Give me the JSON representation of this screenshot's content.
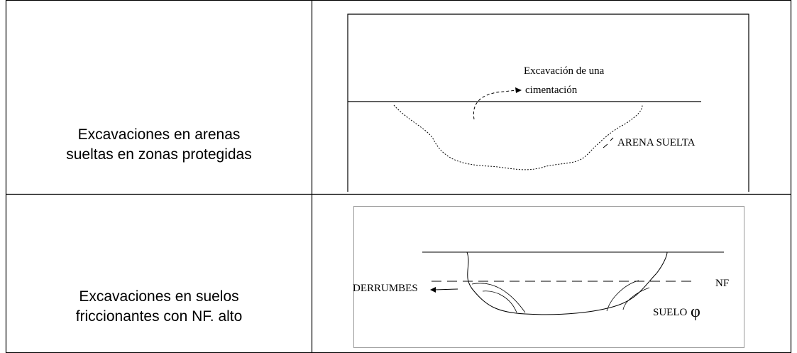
{
  "table": {
    "rows": [
      {
        "label": [
          "Excavaciones en arenas",
          "sueltas en zonas protegidas"
        ],
        "diagram": {
          "labels": [
            "Excavación de una",
            "cimentación",
            "ARENA SUELTA"
          ]
        }
      },
      {
        "label": [
          "Excavaciones en suelos",
          "friccionantes con NF. alto"
        ],
        "diagram": {
          "labels": [
            "DERRUMBES",
            "NF",
            "SUELO",
            "φ"
          ]
        }
      }
    ]
  }
}
